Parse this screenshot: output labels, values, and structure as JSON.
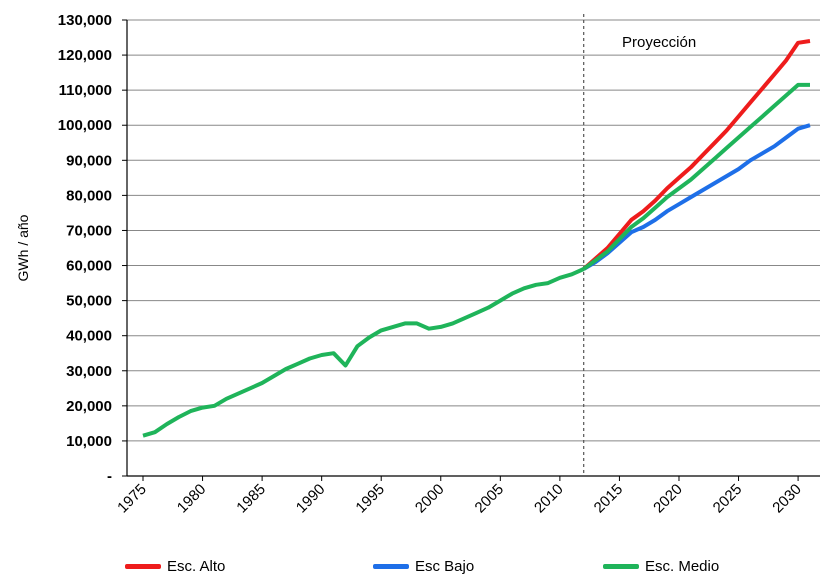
{
  "chart_data": {
    "type": "line",
    "title": "",
    "xlabel": "",
    "ylabel": "GWh / año",
    "xlim": [
      1975,
      2031
    ],
    "ylim": [
      0,
      130000
    ],
    "x_ticks": [
      "1975",
      "1980",
      "1985",
      "1990",
      "1995",
      "2000",
      "2005",
      "2010",
      "2015",
      "2020",
      "2025",
      "2030"
    ],
    "y_ticks": [
      "-",
      "10,000",
      "20,000",
      "30,000",
      "40,000",
      "50,000",
      "60,000",
      "70,000",
      "80,000",
      "90,000",
      "100,000",
      "110,000",
      "120,000",
      "130,000"
    ],
    "grid": "horizontal",
    "legend_position": "bottom",
    "projection_start": 2012,
    "annotation": "Proyección",
    "historical": {
      "x": [
        1975,
        1976,
        1977,
        1978,
        1979,
        1980,
        1981,
        1982,
        1983,
        1984,
        1985,
        1986,
        1987,
        1988,
        1989,
        1990,
        1991,
        1992,
        1993,
        1994,
        1995,
        1996,
        1997,
        1998,
        1999,
        2000,
        2001,
        2002,
        2003,
        2004,
        2005,
        2006,
        2007,
        2008,
        2009,
        2010,
        2011,
        2012
      ],
      "y": [
        11500,
        12500,
        14800,
        16800,
        18500,
        19500,
        20000,
        22000,
        23500,
        25000,
        26500,
        28500,
        30500,
        32000,
        33500,
        34500,
        35000,
        31500,
        37000,
        39500,
        41500,
        42500,
        43500,
        43500,
        42000,
        42500,
        43500,
        45000,
        46500,
        48000,
        50000,
        52000,
        53500,
        54500,
        55000,
        56500,
        57500,
        59000
      ]
    },
    "series": [
      {
        "name": "Esc. Alto",
        "color": "#ee1c1c",
        "x": [
          2012,
          2013,
          2014,
          2015,
          2016,
          2017,
          2018,
          2019,
          2020,
          2021,
          2022,
          2023,
          2024,
          2025,
          2026,
          2027,
          2028,
          2029,
          2030,
          2031
        ],
        "y": [
          59000,
          62000,
          65000,
          69000,
          73000,
          75500,
          78500,
          82000,
          85000,
          88000,
          91500,
          95000,
          98500,
          102500,
          106500,
          110500,
          114500,
          118500,
          123500,
          124000
        ]
      },
      {
        "name": "Esc Bajo",
        "color": "#1e6fe8",
        "x": [
          2012,
          2013,
          2014,
          2015,
          2016,
          2017,
          2018,
          2019,
          2020,
          2021,
          2022,
          2023,
          2024,
          2025,
          2026,
          2027,
          2028,
          2029,
          2030,
          2031
        ],
        "y": [
          59000,
          61000,
          63500,
          66500,
          69500,
          71000,
          73000,
          75500,
          77500,
          79500,
          81500,
          83500,
          85500,
          87500,
          90000,
          92000,
          94000,
          96500,
          99000,
          100000
        ]
      },
      {
        "name": "Esc. Medio",
        "color": "#1fb45a",
        "x": [
          2012,
          2013,
          2014,
          2015,
          2016,
          2017,
          2018,
          2019,
          2020,
          2021,
          2022,
          2023,
          2024,
          2025,
          2026,
          2027,
          2028,
          2029,
          2030,
          2031
        ],
        "y": [
          59000,
          61500,
          64000,
          67500,
          71000,
          73500,
          76500,
          79500,
          82000,
          84500,
          87500,
          90500,
          93500,
          96500,
          99500,
          102500,
          105500,
          108500,
          111500,
          111500
        ]
      }
    ],
    "historical_color": "#1fb45a"
  }
}
